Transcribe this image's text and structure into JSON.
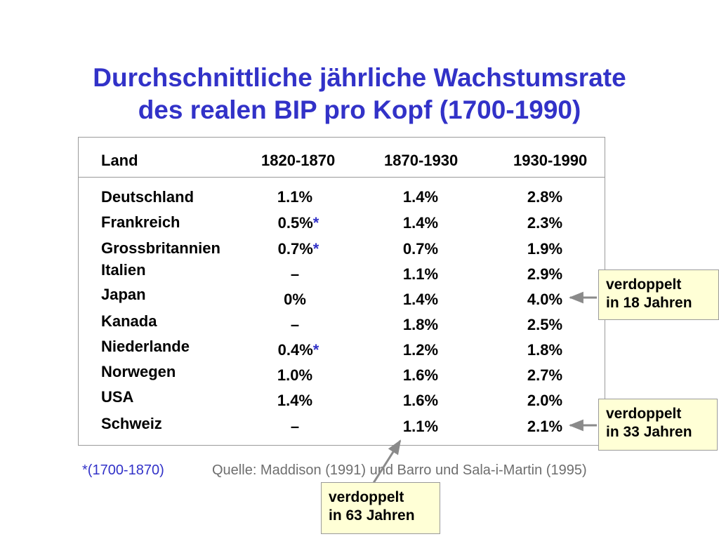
{
  "title": {
    "line1": "Durchschnittliche jährliche Wachstumsrate",
    "line2": "des realen BIP pro Kopf (1700-1990)"
  },
  "table": {
    "headers": [
      "Land",
      "1820-1870",
      "1870-1930",
      "1930-1990"
    ],
    "rows": [
      {
        "country": "Deutschland",
        "p1": "1.1%",
        "p1_star": "",
        "p2": "1.4%",
        "p3": "2.8%"
      },
      {
        "country": "Frankreich",
        "p1": "0.5%",
        "p1_star": "*",
        "p2": "1.4%",
        "p3": "2.3%"
      },
      {
        "country": "Grossbritannien",
        "p1": "0.7%",
        "p1_star": "*",
        "p2": "0.7%",
        "p3": "1.9%"
      },
      {
        "country": "Italien",
        "p1": "–",
        "p1_star": "",
        "p2": "1.1%",
        "p3": "2.9%"
      },
      {
        "country": "Japan",
        "p1": "0%",
        "p1_star": "",
        "p2": "1.4%",
        "p3": "4.0%"
      },
      {
        "country": "Kanada",
        "p1": "–",
        "p1_star": "",
        "p2": "1.8%",
        "p3": "2.5%"
      },
      {
        "country": "Niederlande",
        "p1": "0.4%",
        "p1_star": "*",
        "p2": "1.2%",
        "p3": "1.8%"
      },
      {
        "country": "Norwegen",
        "p1": "1.0%",
        "p1_star": "",
        "p2": "1.6%",
        "p3": "2.7%"
      },
      {
        "country": "USA",
        "p1": "1.4%",
        "p1_star": "",
        "p2": "1.6%",
        "p3": "2.0%"
      },
      {
        "country": "Schweiz",
        "p1": "–",
        "p1_star": "",
        "p2": "1.1%",
        "p3": "2.1%"
      }
    ]
  },
  "footnote": {
    "star_note": "*(1700-1870)",
    "source": "Quelle: Maddison (1991) und Barro und Sala-i-Martin (1995)"
  },
  "callouts": [
    {
      "line1": "verdoppelt",
      "line2": "in 18 Jahren"
    },
    {
      "line1": "verdoppelt",
      "line2": "in 33 Jahren"
    },
    {
      "line1": "verdoppelt",
      "line2": "in 63 Jahren"
    }
  ],
  "colors": {
    "title": "#3232c8",
    "callout_bg": "#ffffd6",
    "border": "#9a9a9a",
    "source_text": "#6e6e6e",
    "arrow": "#8a8a8a"
  }
}
